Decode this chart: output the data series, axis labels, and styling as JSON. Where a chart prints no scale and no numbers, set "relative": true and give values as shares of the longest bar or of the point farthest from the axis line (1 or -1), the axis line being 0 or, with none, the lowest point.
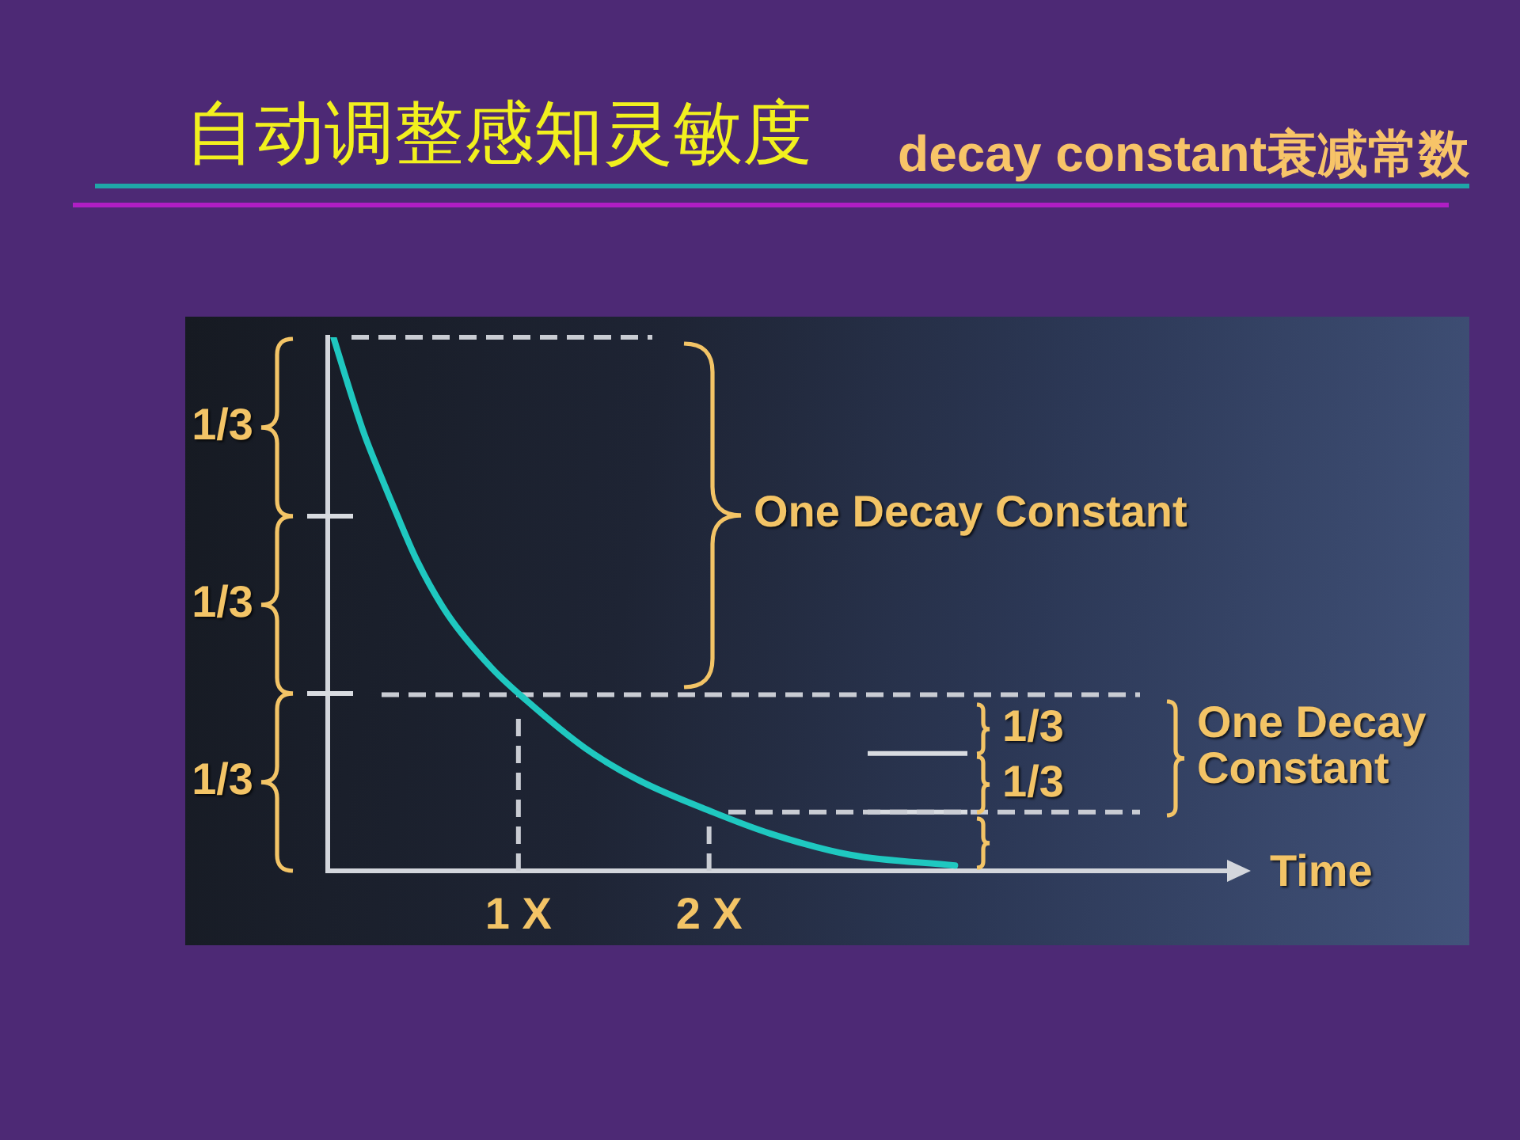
{
  "chart_data": {
    "type": "line",
    "title": "自动调整感知灵敏度",
    "subtitle": "decay constant衰减常数",
    "xlabel": "Time",
    "relative": true,
    "x": [
      0.03,
      0.09,
      0.19,
      0.29,
      0.36,
      0.47,
      0.63,
      0.86,
      1.04,
      1.35,
      1.63,
      2.02,
      2.32,
      2.74,
      3.29
    ],
    "series": [
      {
        "color": "#1fc8c0",
        "values": [
          1,
          0.93,
          0.82,
          0.73,
          0.67,
          0.58,
          0.48,
          0.38,
          0.32,
          0.23,
          0.17,
          0.11,
          0.07,
          0.03,
          0.01
        ]
      }
    ],
    "xlim": [
      0,
      4.8
    ],
    "xticks": [
      {
        "value": 1,
        "label": "1 X"
      },
      {
        "value": 2,
        "label": "2 X"
      }
    ],
    "marker": "none",
    "line_style": "solid",
    "ref_lines": [
      {
        "axis": "y",
        "value": 1,
        "line_style": "dashed",
        "color": "#c9ccd3"
      },
      {
        "axis": "y",
        "value": 0.33,
        "line_style": "dashed",
        "color": "#c9ccd3"
      },
      {
        "axis": "y",
        "value": 0.22,
        "line_style": "solid",
        "color": "#d8dbe0"
      },
      {
        "axis": "y",
        "value": 0.11,
        "line_style": "solid",
        "color": "#d8dbe0"
      },
      {
        "axis": "y",
        "value": 0.11,
        "line_style": "dashed",
        "color": "#c9ccd3"
      },
      {
        "axis": "x",
        "value": 1,
        "line_style": "dashed",
        "color": "#c9ccd3"
      },
      {
        "axis": "x",
        "value": 2,
        "line_style": "dashed",
        "color": "#c9ccd3"
      }
    ],
    "annotations": [
      "1/3",
      "1/3",
      "1/3",
      "One Decay Constant",
      "1/3",
      "1/3",
      "One Decay Constant"
    ]
  }
}
